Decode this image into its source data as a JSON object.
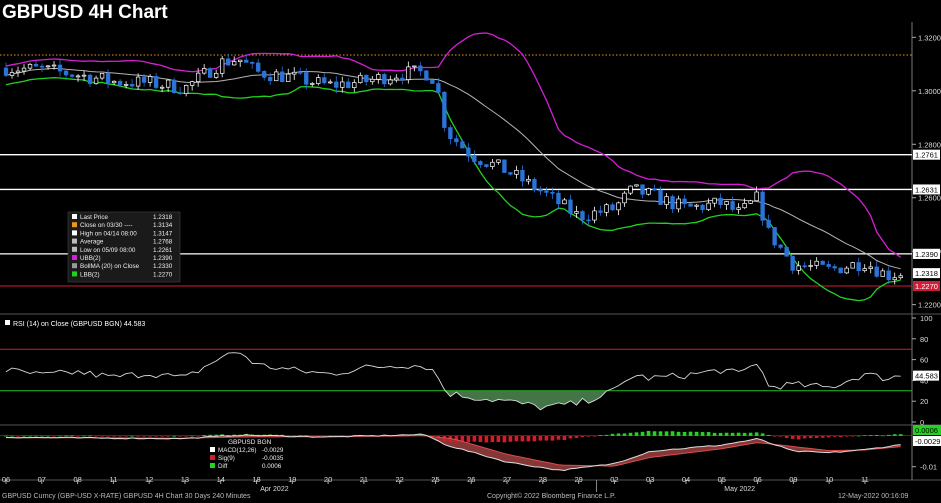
{
  "title": "GBPUSD 4H Chart",
  "colors": {
    "up": "#ffffff",
    "down": "#2a74d8",
    "sma": "#b4b4b4",
    "ubb": "#d51fd6",
    "lbb": "#22d11f",
    "close_line": "#e79722",
    "low_line": "#d21d3a",
    "rsi": "#d9d9d9",
    "rsi_fill": "#4f8a52",
    "hist": "#21d41e",
    "macd": "#ffffff",
    "sig": "#c4161e"
  },
  "chart_data": [
    {
      "type": "candlestick",
      "title": "GBPUSD 4H Chart",
      "ylim": [
        1.218,
        1.3235
      ],
      "yticks": [
        "1.3200",
        "1.3000",
        "1.2800",
        "1.2600",
        "1.2400",
        "1.2200"
      ],
      "x_labels": [
        "06",
        "07",
        "08",
        "11",
        "12",
        "13",
        "14",
        "18",
        "19",
        "20",
        "21",
        "22",
        "25",
        "26",
        "27",
        "28",
        "29",
        "02",
        "03",
        "04",
        "05",
        "06",
        "09",
        "10",
        "11"
      ],
      "month_labels": [
        "Apr 2022",
        "May 2022"
      ],
      "horizontal_levels": [
        {
          "value": 1.2761,
          "label": "1.2761"
        },
        {
          "value": 1.2631,
          "label": "1.2631"
        },
        {
          "value": 1.239,
          "label": "1.2390"
        }
      ],
      "tags": [
        {
          "value": 1.239,
          "label": "1.2390"
        },
        {
          "value": 1.2318,
          "label": "1.2318"
        },
        {
          "value": 1.227,
          "label": "1.2270"
        }
      ],
      "close_line": 1.3134,
      "low_line": 1.227,
      "waypoints": [
        {
          "day": 0,
          "p": 1.3085
        },
        {
          "day": 1,
          "p": 1.308
        },
        {
          "day": 2,
          "p": 1.306
        },
        {
          "day": 3,
          "p": 1.3035
        },
        {
          "day": 4,
          "p": 1.303
        },
        {
          "day": 5,
          "p": 1.301
        },
        {
          "day": 6,
          "p": 1.3105
        },
        {
          "day": 6.5,
          "p": 1.312
        },
        {
          "day": 7,
          "p": 1.307
        },
        {
          "day": 8,
          "p": 1.305
        },
        {
          "day": 9,
          "p": 1.302
        },
        {
          "day": 10,
          "p": 1.3035
        },
        {
          "day": 11,
          "p": 1.3065
        },
        {
          "day": 11.7,
          "p": 1.307
        },
        {
          "day": 12,
          "p": 1.304
        },
        {
          "day": 12.3,
          "p": 1.285
        },
        {
          "day": 13,
          "p": 1.276
        },
        {
          "day": 14,
          "p": 1.27
        },
        {
          "day": 15,
          "p": 1.262
        },
        {
          "day": 16,
          "p": 1.253
        },
        {
          "day": 17,
          "p": 1.256
        },
        {
          "day": 17.5,
          "p": 1.263
        },
        {
          "day": 18,
          "p": 1.261
        },
        {
          "day": 19,
          "p": 1.256
        },
        {
          "day": 20,
          "p": 1.258
        },
        {
          "day": 20.5,
          "p": 1.254
        },
        {
          "day": 21,
          "p": 1.26
        },
        {
          "day": 21.3,
          "p": 1.247
        },
        {
          "day": 22,
          "p": 1.235
        },
        {
          "day": 23,
          "p": 1.233
        },
        {
          "day": 24,
          "p": 1.236
        },
        {
          "day": 24.6,
          "p": 1.231
        },
        {
          "day": 25,
          "p": 1.2318
        }
      ],
      "legend": [
        {
          "label": "Last Price",
          "value": "1.2318"
        },
        {
          "label": "Close on 03/30 ----",
          "value": "1.3134"
        },
        {
          "label": "High on 04/14 08:00",
          "value": "1.3147"
        },
        {
          "label": "Average",
          "value": "1.2768"
        },
        {
          "label": "Low on 05/09 08:00",
          "value": "1.2261"
        },
        {
          "label": "UBB(2)",
          "value": "1.2390"
        },
        {
          "label": "BollMA (20)  on Close",
          "value": "1.2330"
        },
        {
          "label": "LBB(2)",
          "value": "1.2270"
        }
      ]
    },
    {
      "type": "line",
      "title": "RSI (14)  on Close (GBPUSD BGN) 44.583",
      "ylim": [
        0,
        100
      ],
      "yticks": [
        "100",
        "80",
        "60",
        "40",
        "20",
        "0"
      ],
      "levels": [
        70,
        30
      ],
      "last_value": "44.583",
      "waypoints": [
        {
          "day": 0,
          "v": 50
        },
        {
          "day": 1,
          "v": 45
        },
        {
          "day": 2,
          "v": 48
        },
        {
          "day": 3,
          "v": 43
        },
        {
          "day": 4,
          "v": 47
        },
        {
          "day": 5,
          "v": 42
        },
        {
          "day": 6,
          "v": 62
        },
        {
          "day": 6.5,
          "v": 68
        },
        {
          "day": 7,
          "v": 55
        },
        {
          "day": 8,
          "v": 50
        },
        {
          "day": 9,
          "v": 46
        },
        {
          "day": 10,
          "v": 52
        },
        {
          "day": 11,
          "v": 55
        },
        {
          "day": 11.7,
          "v": 54
        },
        {
          "day": 12,
          "v": 48
        },
        {
          "day": 12.3,
          "v": 28
        },
        {
          "day": 13,
          "v": 24
        },
        {
          "day": 14,
          "v": 20
        },
        {
          "day": 15,
          "v": 14
        },
        {
          "day": 16,
          "v": 18
        },
        {
          "day": 17,
          "v": 30
        },
        {
          "day": 17.5,
          "v": 45
        },
        {
          "day": 18,
          "v": 42
        },
        {
          "day": 19,
          "v": 45
        },
        {
          "day": 20,
          "v": 50
        },
        {
          "day": 20.5,
          "v": 46
        },
        {
          "day": 21,
          "v": 58
        },
        {
          "day": 21.3,
          "v": 34
        },
        {
          "day": 22,
          "v": 36
        },
        {
          "day": 23,
          "v": 33
        },
        {
          "day": 24,
          "v": 46
        },
        {
          "day": 24.6,
          "v": 42
        },
        {
          "day": 25,
          "v": 44.6
        }
      ]
    },
    {
      "type": "histogram",
      "title": "GBPUSD BGN",
      "ylim": [
        -0.013,
        0.0025
      ],
      "yticks": [
        "-0.01"
      ],
      "tags": [
        {
          "value": 0.0006,
          "label": "0.0006"
        },
        {
          "value": -0.0029,
          "label": "-0.0029"
        }
      ],
      "legend": [
        {
          "label": "MACD(12,26)",
          "value": "-0.0029"
        },
        {
          "label": "Sig(9)",
          "value": "-0.0035"
        },
        {
          "label": "Diff",
          "value": "0.0006"
        }
      ],
      "macd_waypoints": [
        {
          "day": 0,
          "v": -0.0005
        },
        {
          "day": 3,
          "v": -0.0008
        },
        {
          "day": 5,
          "v": -0.0009
        },
        {
          "day": 6.5,
          "v": 0.0002
        },
        {
          "day": 9,
          "v": -0.0004
        },
        {
          "day": 11.7,
          "v": 0.0004
        },
        {
          "day": 12.3,
          "v": -0.003
        },
        {
          "day": 14,
          "v": -0.0085
        },
        {
          "day": 15.5,
          "v": -0.0112
        },
        {
          "day": 17,
          "v": -0.009
        },
        {
          "day": 18,
          "v": -0.005
        },
        {
          "day": 20,
          "v": -0.003
        },
        {
          "day": 21,
          "v": -0.001
        },
        {
          "day": 22,
          "v": -0.005
        },
        {
          "day": 23,
          "v": -0.0055
        },
        {
          "day": 24,
          "v": -0.0045
        },
        {
          "day": 25,
          "v": -0.0029
        }
      ],
      "sig_waypoints": [
        {
          "day": 0,
          "v": -0.0006
        },
        {
          "day": 3,
          "v": -0.0007
        },
        {
          "day": 5,
          "v": -0.0008
        },
        {
          "day": 6.5,
          "v": -0.0004
        },
        {
          "day": 9,
          "v": -0.0003
        },
        {
          "day": 11.7,
          "v": 0.0
        },
        {
          "day": 12.5,
          "v": -0.001
        },
        {
          "day": 14,
          "v": -0.006
        },
        {
          "day": 15.5,
          "v": -0.0095
        },
        {
          "day": 17,
          "v": -0.0098
        },
        {
          "day": 18,
          "v": -0.007
        },
        {
          "day": 20,
          "v": -0.0042
        },
        {
          "day": 21,
          "v": -0.0022
        },
        {
          "day": 22,
          "v": -0.0035
        },
        {
          "day": 23,
          "v": -0.0048
        },
        {
          "day": 24,
          "v": -0.0046
        },
        {
          "day": 25,
          "v": -0.0035
        }
      ]
    }
  ],
  "footer": {
    "left": "GBPUSD Curncy (GBP-USD X-RATE) GBPUSD 4H Chart 30 Days 240 Minutes",
    "center": "Copyright© 2022 Bloomberg Finance L.P.",
    "right": "12-May-2022 00:16:09"
  }
}
